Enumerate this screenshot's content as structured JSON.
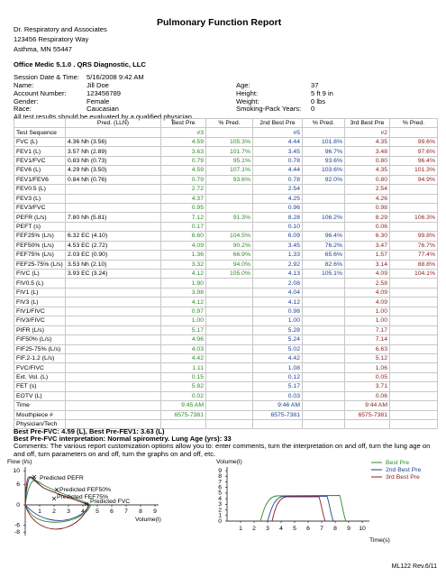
{
  "header": {
    "org": [
      "Dr. Respiratory and Associates",
      "123456 Respiratory Way",
      "Asthma, MN 55447"
    ],
    "title": "Pulmonary Function Report",
    "software": "Office Medic 5.1.0 . QRS Diagnostic, LLC"
  },
  "session": {
    "date_label": "Session Date & Time:",
    "date_value": "5/16/2008 9:42 AM",
    "fields": [
      [
        "Name:",
        "Jill Doe",
        "Age:",
        "37"
      ],
      [
        "Account Number:",
        "123456789",
        "Height:",
        "5 ft 9 in"
      ],
      [
        "Gender:",
        "Female",
        "Weight:",
        "0 lbs"
      ],
      [
        "Race:",
        "Caucasian",
        "Smoking-Pack Years:",
        "0"
      ]
    ],
    "note": "All test results should be evaluated by a qualified physician."
  },
  "table": {
    "headers": [
      null,
      "Pred. (LLN)",
      "Best Pre",
      "% Pred.",
      "2nd Best Pre",
      "% Pred.",
      "3rd Best Pre",
      "% Pred."
    ],
    "rows": [
      [
        "Test Sequence",
        null,
        "#3",
        null,
        "#5",
        null,
        "#2",
        null
      ],
      [
        "FVC (L)",
        "4.36 Nh  (3.56)",
        "4.59",
        "105.3%",
        "4.44",
        "101.8%",
        "4.35",
        "99.6%"
      ],
      [
        "FEV1 (L)",
        "3.57 Nh  (2.89)",
        "3.63",
        "101.7%",
        "3.45",
        "96.7%",
        "3.48",
        "97.6%"
      ],
      [
        "FEV1/FVC",
        "0.83 Nh  (0.73)",
        "0.79",
        "95.1%",
        "0.78",
        "93.6%",
        "0.80",
        "96.4%"
      ],
      [
        "FEV6 (L)",
        "4.29 Nh  (3.50)",
        "4.59",
        "107.1%",
        "4.44",
        "103.6%",
        "4.35",
        "101.3%"
      ],
      [
        "FEV1/FEV6",
        "0.84 Nh  (0.76)",
        "0.79",
        "93.6%",
        "0.78",
        "92.0%",
        "0.80",
        "94.9%"
      ],
      [
        "FEV0.5 (L)",
        null,
        "2.72",
        null,
        "2.54",
        null,
        "2.54",
        null
      ],
      [
        "FEV3 (L)",
        null,
        "4.37",
        null,
        "4.25",
        null,
        "4.26",
        null
      ],
      [
        "FEV3/FVC",
        null,
        "0.95",
        null,
        "0.96",
        null,
        "0.98",
        null
      ],
      [
        "PEFR (L/s)",
        "7.80 Nh  (5.81)",
        "7.12",
        "91.3%",
        "8.28",
        "106.2%",
        "8.29",
        "106.3%"
      ],
      [
        "PEFT (s)",
        null,
        "0.17",
        null,
        "0.10",
        null,
        "0.06",
        null
      ],
      [
        "FEF25% (L/s)",
        "6.32 EC  (4.10)",
        "6.60",
        "104.5%",
        "6.09",
        "96.4%",
        "6.30",
        "99.8%"
      ],
      [
        "FEF50% (L/s)",
        "4.53 EC  (2.72)",
        "4.09",
        "90.2%",
        "3.45",
        "76.2%",
        "3.47",
        "76.7%"
      ],
      [
        "FEF75% (L/s)",
        "2.03 EC  (0.90)",
        "1.36",
        "66.9%",
        "1.33",
        "65.6%",
        "1.57",
        "77.4%"
      ],
      [
        "FEF25-75% (L/s)",
        "3.53 Nh  (2.10)",
        "3.32",
        "94.0%",
        "2.92",
        "82.6%",
        "3.14",
        "88.8%"
      ],
      [
        "FIVC (L)",
        "3.93 EC  (3.24)",
        "4.12",
        "105.0%",
        "4.13",
        "105.1%",
        "4.09",
        "104.1%"
      ],
      [
        "FIV0.5 (L)",
        null,
        "1.90",
        null,
        "2.08",
        null,
        "2.58",
        null
      ],
      [
        "FIV1 (L)",
        null,
        "3.98",
        null,
        "4.04",
        null,
        "4.09",
        null
      ],
      [
        "FIV3 (L)",
        null,
        "4.12",
        null,
        "4.12",
        null,
        "4.09",
        null
      ],
      [
        "FIV1/FIVC",
        null,
        "0.97",
        null,
        "0.98",
        null,
        "1.00",
        null
      ],
      [
        "FIV3/FIVC",
        null,
        "1.00",
        null,
        "1.00",
        null,
        "1.00",
        null
      ],
      [
        "PIFR (L/s)",
        null,
        "5.17",
        null,
        "5.28",
        null,
        "7.17",
        null
      ],
      [
        "FIF50% (L/s)",
        null,
        "4.96",
        null,
        "5.24",
        null,
        "7.14",
        null
      ],
      [
        "FIF25-75% (L/s)",
        null,
        "4.03",
        null,
        "5.02",
        null,
        "6.63",
        null
      ],
      [
        "FIF.2-1.2 (L/s)",
        null,
        "4.42",
        null,
        "4.42",
        null,
        "5.12",
        null
      ],
      [
        "FVC/FIVC",
        null,
        "1.11",
        null,
        "1.08",
        null,
        "1.06",
        null
      ],
      [
        "Ext. Vol. (L)",
        null,
        "0.15",
        null,
        "0.12",
        null,
        "0.05",
        null
      ],
      [
        "FET (s)",
        null,
        "5.82",
        null,
        "5.17",
        null,
        "3.71",
        null
      ],
      [
        "EOTV (L)",
        null,
        "0.02",
        null,
        "0.03",
        null,
        "0.06",
        null
      ],
      [
        "Time",
        null,
        "9:45 AM",
        null,
        "9:46 AM",
        null,
        "9:44 AM",
        null
      ],
      [
        "Mouthpiece #",
        null,
        "6575-7381",
        null,
        "6575-7381",
        null,
        "6575-7381",
        null
      ],
      [
        "Physician/Tech",
        null,
        null,
        null,
        null,
        null,
        null,
        null
      ]
    ]
  },
  "summary": {
    "best": "Best Pre-FVC: 4.59 (L), Best Pre-FEV1: 3.63 (L)",
    "interpretation": "Best Pre-FVC interpretation: Normal spirometry.   Lung Age (yrs): 33",
    "comments": "Comments:  The various report customization options allow you to: enter comments, turn the interpretation on and off, turn the lung age on and off, turn parameters on and off, turn the graphs on and off, etc."
  },
  "flow_chart": {
    "y_label": "Flow (l/s)",
    "x_label": "Volume(l)",
    "yticks": [
      "10",
      "6",
      "0",
      "-6",
      "-8"
    ],
    "xticks": [
      "1",
      "2",
      "3",
      "4",
      "5",
      "6",
      "7",
      "8",
      "9"
    ],
    "annotations": [
      "Predicted PEFR",
      "Predicted FEF50%",
      "Predicted FEF75%",
      "Predicted FVC"
    ]
  },
  "volume_chart": {
    "y_label": "Volume(l)",
    "x_label": "Time(s)",
    "yticks": [
      "9",
      "8",
      "7",
      "6",
      "5",
      "4",
      "3",
      "2",
      "1",
      "0"
    ],
    "xticks": [
      "1",
      "2",
      "3",
      "4",
      "5",
      "6",
      "7",
      "8",
      "9",
      "10"
    ]
  },
  "legend": [
    "Best Pre",
    "2nd Best Pre",
    "3rd Best Pre"
  ],
  "footer": "ML122 Rev.6/11"
}
